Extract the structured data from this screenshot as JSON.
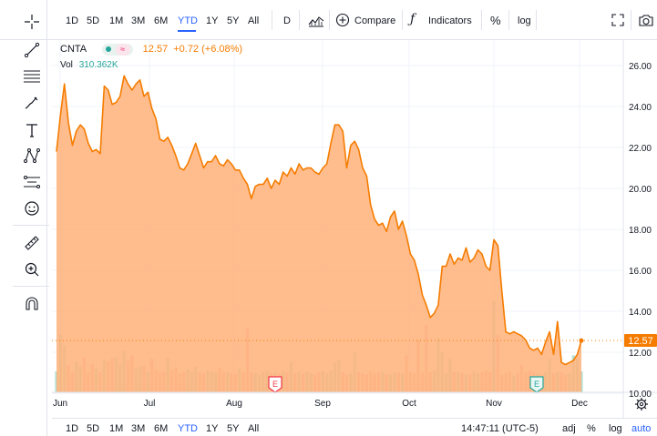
{
  "toolbar": {
    "ranges": [
      "1D",
      "5D",
      "1M",
      "3M",
      "6M",
      "YTD",
      "1Y",
      "5Y",
      "All"
    ],
    "active_range": "YTD",
    "interval": "D",
    "compare_label": "Compare",
    "indicators_label": "Indicators",
    "percent_label": "%",
    "log_label": "log"
  },
  "legend": {
    "symbol": "CNTA",
    "price": "12.57",
    "change": "+0.72 (+6.08%)",
    "volume_label": "Vol",
    "volume_value": "310.362K"
  },
  "bottom": {
    "ranges": [
      "1D",
      "5D",
      "1M",
      "3M",
      "6M",
      "YTD",
      "1Y",
      "5Y",
      "All"
    ],
    "active_range": "YTD",
    "time": "14:47:11 (UTC-5)",
    "adj_label": "adj",
    "percent_label": "%",
    "log_label": "log",
    "auto_label": "auto"
  },
  "colors": {
    "line": "#f57c00",
    "area": "#ffb27a",
    "vol_green": "#8fcfb6",
    "vol_red": "#f5a093",
    "price_tag": "#f57c00",
    "accent": "#2962ff"
  },
  "chart_data": {
    "type": "area",
    "y_axis_ticks": [
      "26.00",
      "24.00",
      "22.00",
      "20.00",
      "18.00",
      "16.00",
      "14.00",
      "12.00",
      "10.00"
    ],
    "ylim": [
      10,
      27
    ],
    "x_axis_ticks": [
      "Jun",
      "Jul",
      "Aug",
      "Sep",
      "Oct",
      "Nov",
      "Dec"
    ],
    "last_price_label": "12.57",
    "events": [
      {
        "label": "E",
        "near": "Aug",
        "kind": "earnings-past"
      },
      {
        "label": "E",
        "near": "Nov",
        "kind": "earnings-upcoming"
      }
    ],
    "series": [
      {
        "values": [
          21.8,
          23.6,
          25.1,
          23.2,
          22.1,
          22.8,
          23.1,
          22.9,
          22.2,
          21.8,
          21.9,
          21.7,
          25.0,
          24.8,
          24.1,
          24.2,
          24.5,
          25.5,
          25.1,
          24.8,
          25.1,
          25.3,
          24.5,
          24.7,
          23.9,
          23.4,
          22.4,
          22.3,
          22.5,
          22.1,
          21.6,
          21.0,
          20.9,
          21.2,
          21.7,
          22.2,
          21.6,
          21.0,
          21.3,
          21.3,
          21.6,
          21.2,
          21.1,
          21.4,
          21.2,
          20.9,
          20.9,
          20.5,
          20.2,
          19.5,
          20.1,
          20.2,
          20.2,
          20.5,
          20.0,
          20.4,
          20.2,
          20.8,
          20.6,
          21.0,
          20.7,
          21.2,
          20.9,
          21.0,
          21.0,
          20.8,
          20.7,
          21.0,
          21.2,
          22.2,
          23.1,
          23.1,
          22.8,
          21.0,
          22.1,
          22.3,
          21.9,
          21.0,
          20.6,
          19.2,
          18.5,
          18.2,
          18.3,
          17.9,
          18.6,
          18.9,
          18.0,
          18.4,
          17.7,
          16.8,
          16.5,
          15.8,
          14.8,
          14.3,
          13.7,
          13.9,
          14.3,
          16.2,
          16.2,
          16.8,
          16.3,
          16.6,
          16.5,
          17.1,
          16.4,
          16.6,
          17.0,
          16.8,
          16.2,
          16.0,
          17.5,
          17.2,
          15.0,
          13.0,
          12.9,
          13.0,
          12.9,
          12.8,
          12.6,
          12.2,
          12.1,
          12.2,
          11.9,
          12.5,
          13.0,
          11.9,
          13.5,
          11.5,
          11.4,
          11.5,
          11.6,
          11.9,
          12.57
        ]
      },
      {
        "name": "Vol",
        "values": [
          310,
          850,
          700,
          400,
          300,
          450,
          380,
          520,
          300,
          420,
          350,
          300,
          480,
          460,
          500,
          520,
          430,
          610,
          470,
          550,
          350,
          380,
          400,
          300,
          500,
          330,
          300,
          310,
          520,
          330,
          370,
          280,
          300,
          340,
          310,
          380,
          300,
          280,
          320,
          300,
          290,
          360,
          300,
          300,
          280,
          270,
          350,
          300,
          950,
          300,
          280,
          260,
          300,
          310,
          280,
          300,
          280,
          320,
          300,
          450,
          280,
          300,
          270,
          300,
          280,
          260,
          300,
          310,
          280,
          320,
          440,
          480,
          300,
          260,
          280,
          600,
          300,
          280,
          260,
          310,
          280,
          300,
          300,
          270,
          260,
          290,
          300,
          280,
          550,
          300,
          280,
          780,
          290,
          1000,
          300,
          320,
          800,
          600,
          280,
          500,
          300,
          300,
          280,
          270,
          260,
          300,
          280,
          300,
          320,
          300,
          1350,
          850,
          260,
          280,
          300,
          250,
          280,
          400,
          300,
          320,
          300,
          280,
          260,
          300,
          500,
          280,
          300,
          300,
          260,
          280,
          550,
          500,
          310
        ]
      }
    ]
  }
}
